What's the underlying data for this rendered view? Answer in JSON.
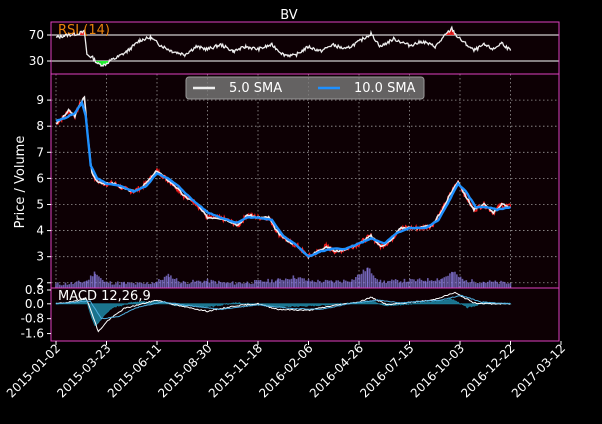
{
  "chart_data": {
    "title": "BV",
    "type": "line",
    "colors": {
      "figure_bg": "#000000",
      "axes_bg": "#0d0004",
      "spine": "#e040c0",
      "grid": "#bbbbbb",
      "price": "#ff2020",
      "sma5": "#eeeeee",
      "sma10": "#1e90ff",
      "volume": "#8a7be0",
      "rsi_line": "#eeeeee",
      "rsi_overbought": "#ff2020",
      "rsi_oversold": "#22ff33",
      "rsi_label": "#e8820c",
      "macd_fill": "#1d7f9c",
      "macd_line": "#ffffff",
      "signal_line": "#4fb0e0",
      "text": "#ffffff"
    },
    "x_dates": [
      "2015-01-02",
      "2015-03-23",
      "2015-06-11",
      "2015-08-30",
      "2015-11-18",
      "2016-02-06",
      "2016-04-26",
      "2016-07-15",
      "2016-10-03",
      "2016-12-22",
      "2017-03-12"
    ],
    "rsi": {
      "label": "RSI (14)",
      "levels": [
        70,
        30
      ],
      "y_ticks": [
        "70",
        "30"
      ],
      "ylim": [
        10,
        90
      ],
      "points": [
        [
          "2015-01-02",
          66
        ],
        [
          "2015-01-20",
          70
        ],
        [
          "2015-02-05",
          72
        ],
        [
          "2015-02-16",
          75
        ],
        [
          "2015-02-20",
          40
        ],
        [
          "2015-03-01",
          35
        ],
        [
          "2015-03-10",
          25
        ],
        [
          "2015-03-20",
          24
        ],
        [
          "2015-03-28",
          30
        ],
        [
          "2015-04-08",
          35
        ],
        [
          "2015-04-25",
          45
        ],
        [
          "2015-05-15",
          62
        ],
        [
          "2015-06-01",
          66
        ],
        [
          "2015-06-15",
          55
        ],
        [
          "2015-07-05",
          45
        ],
        [
          "2015-07-25",
          40
        ],
        [
          "2015-08-12",
          52
        ],
        [
          "2015-08-30",
          48
        ],
        [
          "2015-09-20",
          55
        ],
        [
          "2015-10-10",
          45
        ],
        [
          "2015-10-30",
          52
        ],
        [
          "2015-11-18",
          48
        ],
        [
          "2015-12-10",
          55
        ],
        [
          "2015-12-28",
          40
        ],
        [
          "2016-01-15",
          38
        ],
        [
          "2016-02-06",
          52
        ],
        [
          "2016-02-25",
          45
        ],
        [
          "2016-03-15",
          55
        ],
        [
          "2016-04-05",
          48
        ],
        [
          "2016-04-26",
          60
        ],
        [
          "2016-05-15",
          72
        ],
        [
          "2016-05-30",
          52
        ],
        [
          "2016-06-20",
          64
        ],
        [
          "2016-07-15",
          54
        ],
        [
          "2016-08-05",
          60
        ],
        [
          "2016-08-25",
          52
        ],
        [
          "2016-09-10",
          70
        ],
        [
          "2016-09-20",
          80
        ],
        [
          "2016-09-28",
          68
        ],
        [
          "2016-10-10",
          58
        ],
        [
          "2016-10-25",
          46
        ],
        [
          "2016-11-10",
          55
        ],
        [
          "2016-11-25",
          48
        ],
        [
          "2016-12-08",
          58
        ],
        [
          "2016-12-22",
          46
        ]
      ]
    },
    "price_panel": {
      "ylabel": "Price / Volume",
      "y_ticks": [
        "9",
        "8",
        "7",
        "6",
        "5",
        "4",
        "3",
        "2"
      ],
      "ylim": [
        1.8,
        10
      ],
      "legend": {
        "position": "upper-center",
        "entries": [
          "5.0 SMA",
          "10.0 SMA"
        ]
      },
      "grid": true,
      "price": [
        [
          "2015-01-02",
          8.1
        ],
        [
          "2015-01-12",
          8.3
        ],
        [
          "2015-01-22",
          8.6
        ],
        [
          "2015-02-01",
          8.4
        ],
        [
          "2015-02-10",
          8.9
        ],
        [
          "2015-02-16",
          9.1
        ],
        [
          "2015-02-22",
          7.5
        ],
        [
          "2015-02-28",
          6.2
        ],
        [
          "2015-03-08",
          5.9
        ],
        [
          "2015-03-20",
          5.8
        ],
        [
          "2015-04-05",
          5.8
        ],
        [
          "2015-04-20",
          5.6
        ],
        [
          "2015-05-05",
          5.5
        ],
        [
          "2015-05-20",
          5.7
        ],
        [
          "2015-06-01",
          6.0
        ],
        [
          "2015-06-11",
          6.3
        ],
        [
          "2015-06-25",
          6.0
        ],
        [
          "2015-07-10",
          5.7
        ],
        [
          "2015-07-25",
          5.3
        ],
        [
          "2015-08-10",
          5.1
        ],
        [
          "2015-08-30",
          4.5
        ],
        [
          "2015-09-15",
          4.5
        ],
        [
          "2015-10-01",
          4.4
        ],
        [
          "2015-10-18",
          4.2
        ],
        [
          "2015-11-01",
          4.6
        ],
        [
          "2015-11-18",
          4.5
        ],
        [
          "2015-12-05",
          4.5
        ],
        [
          "2015-12-20",
          3.9
        ],
        [
          "2016-01-05",
          3.6
        ],
        [
          "2016-01-20",
          3.4
        ],
        [
          "2016-02-06",
          3.0
        ],
        [
          "2016-02-20",
          3.2
        ],
        [
          "2016-03-05",
          3.4
        ],
        [
          "2016-03-20",
          3.2
        ],
        [
          "2016-04-05",
          3.3
        ],
        [
          "2016-04-26",
          3.5
        ],
        [
          "2016-05-15",
          3.8
        ],
        [
          "2016-05-30",
          3.4
        ],
        [
          "2016-06-15",
          3.6
        ],
        [
          "2016-06-30",
          4.1
        ],
        [
          "2016-07-15",
          4.1
        ],
        [
          "2016-08-01",
          4.1
        ],
        [
          "2016-08-20",
          4.2
        ],
        [
          "2016-09-05",
          4.8
        ],
        [
          "2016-09-20",
          5.5
        ],
        [
          "2016-09-30",
          5.9
        ],
        [
          "2016-10-10",
          5.4
        ],
        [
          "2016-10-25",
          4.8
        ],
        [
          "2016-11-10",
          5.0
        ],
        [
          "2016-11-25",
          4.7
        ],
        [
          "2016-12-08",
          5.0
        ],
        [
          "2016-12-22",
          4.9
        ]
      ],
      "sma10": [
        [
          "2015-01-02",
          8.2
        ],
        [
          "2015-01-15",
          8.3
        ],
        [
          "2015-02-01",
          8.5
        ],
        [
          "2015-02-12",
          8.9
        ],
        [
          "2015-02-18",
          8.4
        ],
        [
          "2015-02-26",
          6.5
        ],
        [
          "2015-03-08",
          6.0
        ],
        [
          "2015-03-23",
          5.8
        ],
        [
          "2015-04-15",
          5.7
        ],
        [
          "2015-05-05",
          5.5
        ],
        [
          "2015-05-25",
          5.7
        ],
        [
          "2015-06-11",
          6.2
        ],
        [
          "2015-06-28",
          6.0
        ],
        [
          "2015-07-15",
          5.7
        ],
        [
          "2015-08-05",
          5.2
        ],
        [
          "2015-08-30",
          4.7
        ],
        [
          "2015-09-20",
          4.5
        ],
        [
          "2015-10-15",
          4.3
        ],
        [
          "2015-11-01",
          4.5
        ],
        [
          "2015-11-18",
          4.5
        ],
        [
          "2015-12-10",
          4.4
        ],
        [
          "2015-12-28",
          3.8
        ],
        [
          "2016-01-15",
          3.5
        ],
        [
          "2016-02-06",
          3.0
        ],
        [
          "2016-02-25",
          3.2
        ],
        [
          "2016-03-15",
          3.3
        ],
        [
          "2016-04-05",
          3.3
        ],
        [
          "2016-04-26",
          3.5
        ],
        [
          "2016-05-15",
          3.7
        ],
        [
          "2016-06-05",
          3.5
        ],
        [
          "2016-06-25",
          3.9
        ],
        [
          "2016-07-15",
          4.1
        ],
        [
          "2016-08-10",
          4.1
        ],
        [
          "2016-08-30",
          4.4
        ],
        [
          "2016-09-15",
          5.1
        ],
        [
          "2016-09-30",
          5.8
        ],
        [
          "2016-10-12",
          5.5
        ],
        [
          "2016-10-28",
          4.9
        ],
        [
          "2016-11-15",
          4.9
        ],
        [
          "2016-12-01",
          4.8
        ],
        [
          "2016-12-22",
          4.9
        ]
      ],
      "volume": [
        [
          "2015-01-02",
          0.25
        ],
        [
          "2015-02-01",
          0.3
        ],
        [
          "2015-02-20",
          0.45
        ],
        [
          "2015-03-05",
          1.0
        ],
        [
          "2015-03-20",
          0.35
        ],
        [
          "2015-04-20",
          0.3
        ],
        [
          "2015-05-20",
          0.25
        ],
        [
          "2015-06-11",
          0.4
        ],
        [
          "2015-06-30",
          0.8
        ],
        [
          "2015-07-20",
          0.35
        ],
        [
          "2015-08-30",
          0.45
        ],
        [
          "2015-09-30",
          0.3
        ],
        [
          "2015-11-01",
          0.35
        ],
        [
          "2015-12-20",
          0.5
        ],
        [
          "2016-01-15",
          0.7
        ],
        [
          "2016-02-06",
          0.45
        ],
        [
          "2016-03-15",
          0.4
        ],
        [
          "2016-04-15",
          0.5
        ],
        [
          "2016-05-10",
          1.25
        ],
        [
          "2016-05-30",
          0.4
        ],
        [
          "2016-07-01",
          0.45
        ],
        [
          "2016-08-10",
          0.5
        ],
        [
          "2016-09-05",
          0.6
        ],
        [
          "2016-09-22",
          1.0
        ],
        [
          "2016-10-10",
          0.45
        ],
        [
          "2016-11-10",
          0.4
        ],
        [
          "2016-12-22",
          0.3
        ]
      ]
    },
    "macd": {
      "label": "MACD 12,26,9",
      "y_ticks": [
        "0.8",
        "0.0",
        "-0.8",
        "-1.6"
      ],
      "ylim": [
        -2.0,
        0.85
      ],
      "histogram": [
        [
          "2015-01-02",
          0.0
        ],
        [
          "2015-02-05",
          0.1
        ],
        [
          "2015-02-18",
          0.3
        ],
        [
          "2015-02-26",
          -0.6
        ],
        [
          "2015-03-05",
          -1.2
        ],
        [
          "2015-03-15",
          -0.8
        ],
        [
          "2015-04-01",
          -0.2
        ],
        [
          "2015-05-01",
          0.05
        ],
        [
          "2015-06-11",
          0.15
        ],
        [
          "2015-07-15",
          -0.1
        ],
        [
          "2015-08-30",
          -0.15
        ],
        [
          "2015-10-15",
          0.05
        ],
        [
          "2015-12-20",
          -0.15
        ],
        [
          "2016-02-06",
          -0.1
        ],
        [
          "2016-04-26",
          0.05
        ],
        [
          "2016-05-15",
          0.15
        ],
        [
          "2016-06-10",
          -0.1
        ],
        [
          "2016-08-20",
          0.1
        ],
        [
          "2016-09-20",
          0.25
        ],
        [
          "2016-10-15",
          -0.2
        ],
        [
          "2016-11-10",
          0.05
        ],
        [
          "2016-12-22",
          0.0
        ]
      ],
      "macd_line": [
        [
          "2015-01-02",
          0.0
        ],
        [
          "2015-02-05",
          0.15
        ],
        [
          "2015-02-18",
          0.35
        ],
        [
          "2015-02-28",
          -0.5
        ],
        [
          "2015-03-10",
          -1.5
        ],
        [
          "2015-03-25",
          -0.9
        ],
        [
          "2015-04-20",
          -0.25
        ],
        [
          "2015-06-11",
          0.2
        ],
        [
          "2015-07-15",
          -0.1
        ],
        [
          "2015-08-30",
          -0.4
        ],
        [
          "2015-10-15",
          -0.1
        ],
        [
          "2015-11-18",
          0.0
        ],
        [
          "2015-12-20",
          -0.3
        ],
        [
          "2016-02-06",
          -0.35
        ],
        [
          "2016-03-15",
          -0.1
        ],
        [
          "2016-04-26",
          0.1
        ],
        [
          "2016-05-15",
          0.35
        ],
        [
          "2016-06-10",
          -0.05
        ],
        [
          "2016-08-20",
          0.2
        ],
        [
          "2016-09-25",
          0.6
        ],
        [
          "2016-10-25",
          0.05
        ],
        [
          "2016-11-20",
          0.0
        ],
        [
          "2016-12-22",
          0.0
        ]
      ],
      "signal_line": [
        [
          "2015-01-02",
          0.0
        ],
        [
          "2015-02-10",
          0.1
        ],
        [
          "2015-02-25",
          0.15
        ],
        [
          "2015-03-15",
          -0.8
        ],
        [
          "2015-04-10",
          -0.7
        ],
        [
          "2015-05-10",
          -0.2
        ],
        [
          "2015-06-20",
          0.1
        ],
        [
          "2015-08-01",
          -0.1
        ],
        [
          "2015-09-20",
          -0.3
        ],
        [
          "2015-11-18",
          -0.05
        ],
        [
          "2016-01-10",
          -0.25
        ],
        [
          "2016-02-25",
          -0.3
        ],
        [
          "2016-04-10",
          0.0
        ],
        [
          "2016-05-25",
          0.2
        ],
        [
          "2016-07-01",
          0.05
        ],
        [
          "2016-09-01",
          0.2
        ],
        [
          "2016-10-05",
          0.45
        ],
        [
          "2016-11-05",
          0.1
        ],
        [
          "2016-12-22",
          0.0
        ]
      ]
    }
  }
}
